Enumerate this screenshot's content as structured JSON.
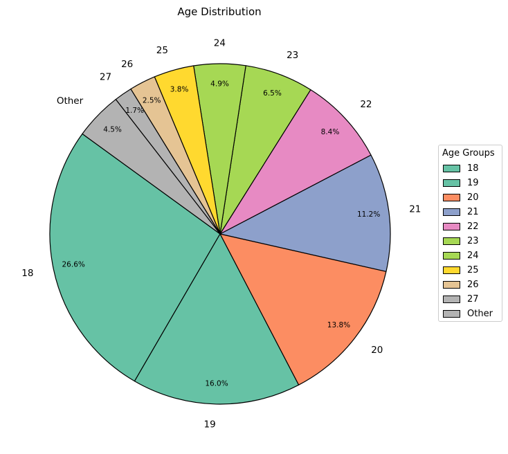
{
  "chart_data": {
    "type": "pie",
    "title": "Age Distribution",
    "categories": [
      "18",
      "19",
      "20",
      "21",
      "22",
      "23",
      "24",
      "25",
      "26",
      "27",
      "Other"
    ],
    "values": [
      26.6,
      16.0,
      13.8,
      11.2,
      8.4,
      6.5,
      4.9,
      3.8,
      2.5,
      1.7,
      4.5
    ],
    "pct_labels": [
      "26.6%",
      "16.0%",
      "13.8%",
      "11.2%",
      "8.4%",
      "6.5%",
      "4.9%",
      "3.8%",
      "2.5%",
      "1.7%",
      "4.5%"
    ],
    "colors": [
      "#66c2a5",
      "#66c2a5",
      "#fc8d62",
      "#8da0cb",
      "#e78ac3",
      "#a6d854",
      "#a6d854",
      "#ffd92f",
      "#e5c494",
      "#b3b3b3",
      "#b3b3b3"
    ],
    "start_angle_deg": 144,
    "direction": "counterclockwise",
    "edge_color": "#000000",
    "legend": {
      "title": "Age Groups",
      "placement": "center-right",
      "entries": [
        "18",
        "19",
        "20",
        "21",
        "22",
        "23",
        "24",
        "25",
        "26",
        "27",
        "Other"
      ]
    }
  }
}
